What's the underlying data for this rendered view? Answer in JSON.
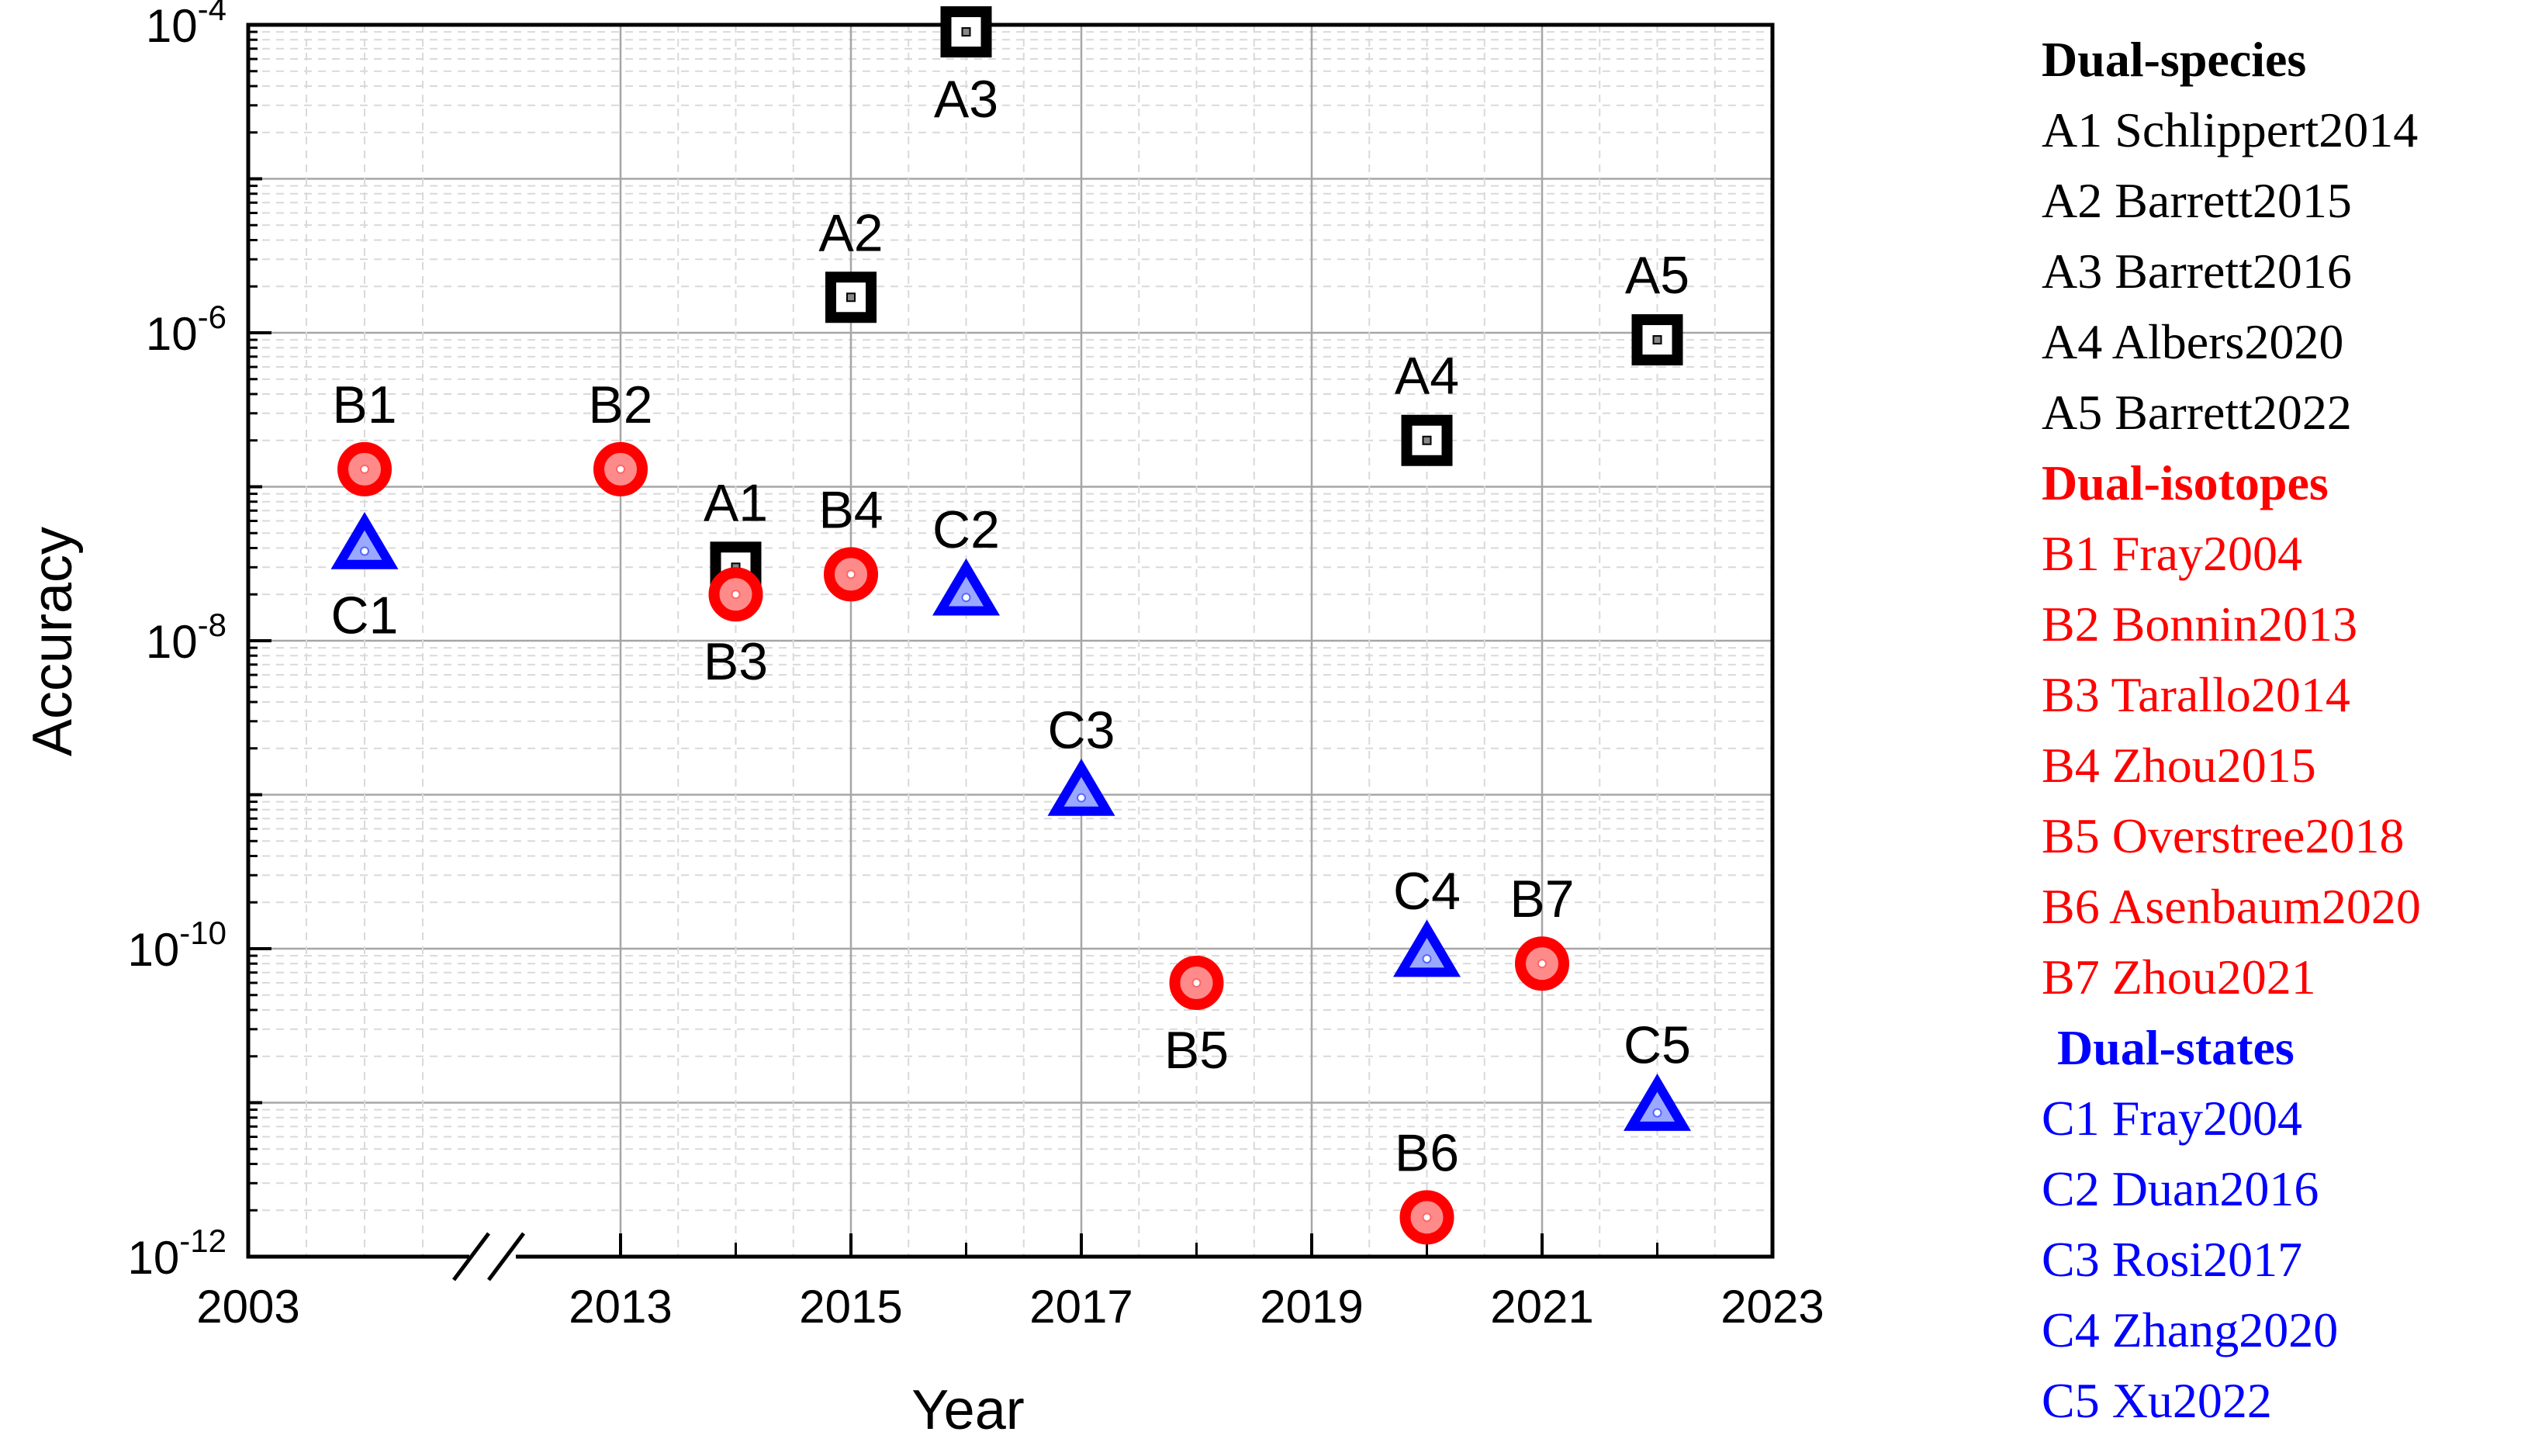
{
  "chart_data": {
    "type": "scatter",
    "xlabel": "Year",
    "ylabel": "Accuracy",
    "y_scale": "log",
    "ylim": [
      1e-12,
      0.0001
    ],
    "grid": true,
    "axis_break": "between 2003 and 2013",
    "x_ticks": [
      "2003",
      "2013",
      "2015",
      "2017",
      "2019",
      "2021",
      "2023"
    ],
    "y_ticks": [
      {
        "base": "10",
        "exp": "-4"
      },
      {
        "base": "10",
        "exp": "-6"
      },
      {
        "base": "10",
        "exp": "-8"
      },
      {
        "base": "10",
        "exp": "-10"
      },
      {
        "base": "10",
        "exp": "-12"
      }
    ],
    "series": [
      {
        "name": "Dual-species",
        "color": "#000000",
        "marker": "square",
        "points": [
          {
            "label": "A1",
            "x": 2014,
            "y": 3e-08
          },
          {
            "label": "A2",
            "x": 2015,
            "y": 1.7e-06
          },
          {
            "label": "A3",
            "x": 2016,
            "y": 9e-05
          },
          {
            "label": "A4",
            "x": 2020,
            "y": 2e-07
          },
          {
            "label": "A5",
            "x": 2022,
            "y": 9e-07
          }
        ]
      },
      {
        "name": "Dual-isotopes",
        "color": "#ff0000",
        "marker": "circle",
        "points": [
          {
            "label": "B1",
            "x": 2004,
            "y": 1.3e-07
          },
          {
            "label": "B2",
            "x": 2013,
            "y": 1.3e-07
          },
          {
            "label": "B3",
            "x": 2014,
            "y": 2e-08
          },
          {
            "label": "B4",
            "x": 2015,
            "y": 2.7e-08
          },
          {
            "label": "B5",
            "x": 2018,
            "y": 6e-11
          },
          {
            "label": "B6",
            "x": 2020,
            "y": 1.8e-12
          },
          {
            "label": "B7",
            "x": 2021,
            "y": 8e-11
          }
        ]
      },
      {
        "name": "Dual-states",
        "color": "#0000ff",
        "marker": "triangle",
        "points": [
          {
            "label": "C1",
            "x": 2004,
            "y": 4e-08
          },
          {
            "label": "C2",
            "x": 2016,
            "y": 2e-08
          },
          {
            "label": "C3",
            "x": 2017,
            "y": 1e-09
          },
          {
            "label": "C4",
            "x": 2020,
            "y": 9e-11
          },
          {
            "label": "C5",
            "x": 2022,
            "y": 9e-12
          }
        ]
      }
    ],
    "legend": {
      "placement": "right",
      "groups": [
        {
          "title": "Dual-species",
          "color": "#000000",
          "items": [
            "A1 Schlippert2014",
            "A2 Barrett2015",
            "A3 Barrett2016",
            "A4 Albers2020",
            "A5 Barrett2022"
          ]
        },
        {
          "title": "Dual-isotopes",
          "color": "#ff0000",
          "items": [
            "B1 Fray2004",
            "B2 Bonnin2013",
            "B3 Tarallo2014",
            "B4 Zhou2015",
            "B5 Overstree2018",
            "B6 Asenbaum2020",
            "B7 Zhou2021"
          ]
        },
        {
          "title": "Dual-states",
          "color": "#0000ff",
          "items": [
            "C1 Fray2004",
            "C2 Duan2016",
            "C3 Rosi2017",
            "C4 Zhang2020",
            "C5 Xu2022"
          ]
        }
      ]
    }
  }
}
